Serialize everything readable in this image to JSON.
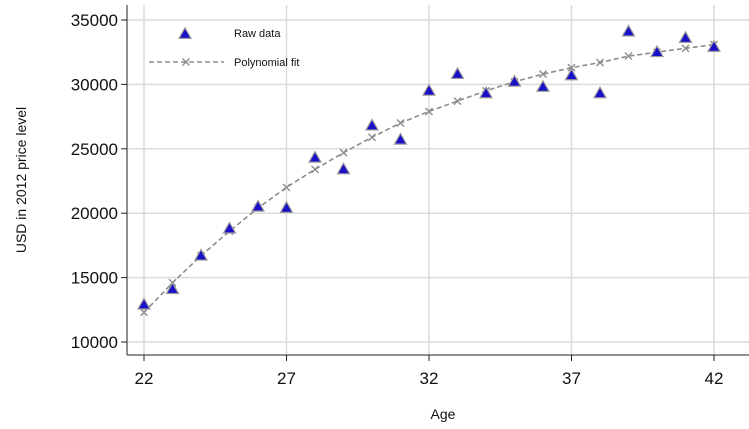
{
  "chart_data": {
    "type": "scatter",
    "xlabel": "Age",
    "ylabel": "USD in 2012 price level",
    "xlim": [
      22,
      42
    ],
    "ylim": [
      10000,
      35000
    ],
    "xticks": [
      22,
      27,
      32,
      37,
      42
    ],
    "xtick_labels": [
      "22",
      "27",
      "32",
      "37",
      "42"
    ],
    "yticks": [
      10000,
      15000,
      20000,
      25000,
      30000,
      35000
    ],
    "ytick_labels": [
      "10000",
      "15000",
      "20000",
      "25000",
      "30000",
      "35000"
    ],
    "grid": true,
    "legend_position": "top-left",
    "x": [
      22,
      23,
      24,
      25,
      26,
      27,
      28,
      29,
      30,
      31,
      32,
      33,
      34,
      35,
      36,
      37,
      38,
      39,
      40,
      41,
      42
    ],
    "series": [
      {
        "name": "Raw data",
        "marker": "triangle",
        "color": "#1a10c8",
        "values": [
          12900,
          14100,
          16700,
          18800,
          20500,
          20400,
          24300,
          23400,
          26800,
          25700,
          29500,
          30800,
          29300,
          30200,
          29800,
          30700,
          29300,
          34100,
          32500,
          33600,
          32900
        ]
      },
      {
        "name": "Polynomial fit",
        "marker": "x",
        "line": "dashed",
        "color": "#8c8c8c",
        "values": [
          12300,
          14600,
          16700,
          18600,
          20400,
          22000,
          23400,
          24700,
          25900,
          27000,
          27900,
          28700,
          29500,
          30200,
          30800,
          31300,
          31700,
          32200,
          32500,
          32800,
          33100
        ]
      }
    ]
  }
}
